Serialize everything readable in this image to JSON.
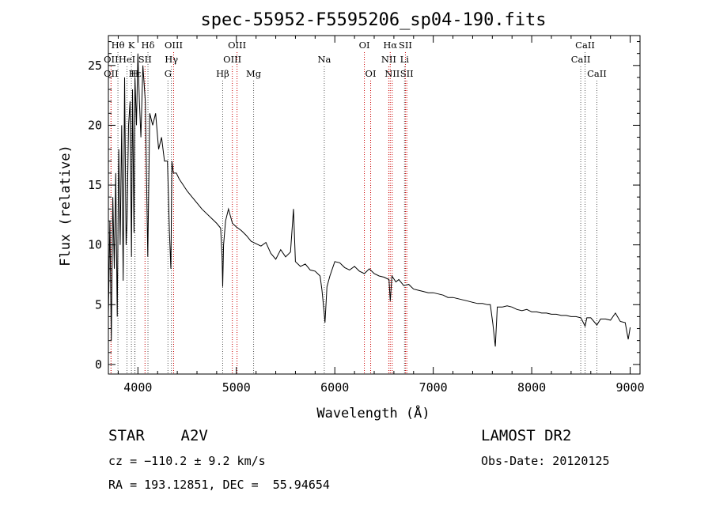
{
  "chart_data": {
    "type": "line",
    "title": "spec-55952-F5595206_sp04-190.fits",
    "xlabel": "Wavelength (Å)",
    "ylabel": "Flux (relative)",
    "xlim": [
      3700,
      9100
    ],
    "ylim": [
      -0.8,
      27.5
    ],
    "xticks": [
      4000,
      5000,
      6000,
      7000,
      8000,
      9000
    ],
    "yticks": [
      0,
      5,
      10,
      15,
      20,
      25
    ],
    "grid": false,
    "line_color": "#000000",
    "marker_colors": {
      "emission": "#cc0000",
      "absorption": "#555555"
    },
    "spectrum": {
      "x": [
        3700,
        3715,
        3730,
        3745,
        3760,
        3775,
        3790,
        3805,
        3820,
        3835,
        3850,
        3865,
        3880,
        3890,
        3905,
        3920,
        3935,
        3945,
        3960,
        3970,
        3985,
        4000,
        4015,
        4030,
        4050,
        4075,
        4100,
        4120,
        4150,
        4180,
        4210,
        4240,
        4270,
        4300,
        4320,
        4335,
        4345,
        4360,
        4390,
        4420,
        4460,
        4500,
        4550,
        4600,
        4650,
        4700,
        4750,
        4800,
        4840,
        4855,
        4861,
        4870,
        4890,
        4920,
        4960,
        5000,
        5050,
        5100,
        5150,
        5200,
        5250,
        5300,
        5350,
        5400,
        5450,
        5500,
        5550,
        5580,
        5600,
        5650,
        5700,
        5750,
        5800,
        5850,
        5870,
        5890,
        5900,
        5920,
        5950,
        6000,
        6050,
        6100,
        6150,
        6200,
        6250,
        6300,
        6350,
        6400,
        6450,
        6500,
        6550,
        6563,
        6580,
        6620,
        6650,
        6700,
        6750,
        6800,
        6850,
        6900,
        6950,
        7000,
        7050,
        7100,
        7150,
        7200,
        7250,
        7300,
        7350,
        7400,
        7450,
        7500,
        7550,
        7580,
        7605,
        7630,
        7650,
        7700,
        7750,
        7800,
        7850,
        7900,
        7950,
        8000,
        8050,
        8100,
        8150,
        8200,
        8250,
        8300,
        8350,
        8400,
        8450,
        8500,
        8542,
        8560,
        8600,
        8662,
        8700,
        8750,
        8800,
        8850,
        8900,
        8950,
        8980,
        9000
      ],
      "y": [
        4,
        12,
        2,
        14,
        8,
        16,
        4,
        18,
        10,
        20,
        7,
        24,
        10,
        12,
        20,
        22,
        9,
        23,
        11,
        24,
        20,
        26,
        22,
        19,
        25,
        22,
        9,
        21,
        20,
        21,
        18,
        19,
        17,
        17,
        11,
        8,
        17,
        16,
        16,
        15.5,
        15,
        14.5,
        14,
        13.5,
        13,
        12.6,
        12.2,
        11.8,
        11.4,
        9,
        6.5,
        10,
        12,
        13,
        11.8,
        11.5,
        11.2,
        10.8,
        10.3,
        10.1,
        9.9,
        10.2,
        9.3,
        8.8,
        9.6,
        9,
        9.4,
        13,
        8.6,
        8.2,
        8.4,
        7.9,
        7.8,
        7.4,
        6.2,
        4.5,
        3.5,
        6.5,
        7.4,
        8.6,
        8.5,
        8.1,
        7.9,
        8.2,
        7.8,
        7.6,
        8,
        7.6,
        7.4,
        7.3,
        7.1,
        5.3,
        7.4,
        6.9,
        7.1,
        6.6,
        6.7,
        6.3,
        6.2,
        6.1,
        6,
        6,
        5.9,
        5.8,
        5.6,
        5.6,
        5.5,
        5.4,
        5.3,
        5.2,
        5.1,
        5.1,
        5,
        5,
        3.4,
        1.5,
        4.8,
        4.8,
        4.9,
        4.8,
        4.6,
        4.5,
        4.6,
        4.4,
        4.4,
        4.3,
        4.3,
        4.2,
        4.2,
        4.1,
        4.1,
        4,
        4,
        3.9,
        3.2,
        3.9,
        3.9,
        3.3,
        3.8,
        3.8,
        3.7,
        4.3,
        3.6,
        3.5,
        2.1,
        3.1
      ]
    },
    "spectral_lines": [
      {
        "label": "Hθ",
        "wavelength": 3797,
        "row": 0,
        "kind": "absorption"
      },
      {
        "label": "K",
        "wavelength": 3934,
        "row": 0,
        "kind": "absorption"
      },
      {
        "label": "Hδ",
        "wavelength": 4102,
        "row": 0,
        "kind": "absorption"
      },
      {
        "label": "OIII",
        "wavelength": 4363,
        "row": 0,
        "kind": "emission"
      },
      {
        "label": "OIII",
        "wavelength": 5007,
        "row": 0,
        "kind": "emission"
      },
      {
        "label": "OI",
        "wavelength": 6300,
        "row": 0,
        "kind": "emission"
      },
      {
        "label": "Hα",
        "wavelength": 6563,
        "row": 0,
        "kind": "emission"
      },
      {
        "label": "SII",
        "wavelength": 6717,
        "row": 0,
        "kind": "emission"
      },
      {
        "label": "CaII",
        "wavelength": 8542,
        "row": 0,
        "kind": "absorption"
      },
      {
        "label": "OII",
        "wavelength": 3727,
        "row": 1,
        "kind": "emission"
      },
      {
        "label": "HeI",
        "wavelength": 3889,
        "row": 1,
        "kind": "absorption"
      },
      {
        "label": "SII",
        "wavelength": 4072,
        "row": 1,
        "kind": "emission"
      },
      {
        "label": "Hγ",
        "wavelength": 4340,
        "row": 1,
        "kind": "absorption"
      },
      {
        "label": "OIII",
        "wavelength": 4959,
        "row": 1,
        "kind": "emission"
      },
      {
        "label": "Na",
        "wavelength": 5893,
        "row": 1,
        "kind": "absorption"
      },
      {
        "label": "NII",
        "wavelength": 6548,
        "row": 1,
        "kind": "emission"
      },
      {
        "label": "Li",
        "wavelength": 6708,
        "row": 1,
        "kind": "absorption"
      },
      {
        "label": "CaII",
        "wavelength": 8498,
        "row": 1,
        "kind": "absorption"
      },
      {
        "label": "OII",
        "wavelength": 3727,
        "row": 2,
        "kind": "emission"
      },
      {
        "label": "Hε",
        "wavelength": 3970,
        "row": 2,
        "kind": "absorption"
      },
      {
        "label": "H",
        "wavelength": 3968,
        "row": 2,
        "kind": "absorption"
      },
      {
        "label": "G",
        "wavelength": 4305,
        "row": 2,
        "kind": "absorption"
      },
      {
        "label": "Hβ",
        "wavelength": 4861,
        "row": 2,
        "kind": "absorption"
      },
      {
        "label": "Mg",
        "wavelength": 5175,
        "row": 2,
        "kind": "absorption"
      },
      {
        "label": "OI",
        "wavelength": 6364,
        "row": 2,
        "kind": "emission"
      },
      {
        "label": "NII",
        "wavelength": 6583,
        "row": 2,
        "kind": "emission"
      },
      {
        "label": "SII",
        "wavelength": 6731,
        "row": 2,
        "kind": "emission"
      },
      {
        "label": "CaII",
        "wavelength": 8662,
        "row": 2,
        "kind": "absorption"
      }
    ]
  },
  "info": {
    "class_label": "STAR",
    "subclass": "A2V",
    "survey": "LAMOST DR2",
    "redshift": "cz = −110.2 ± 9.2 km/s",
    "obs_date": "Obs-Date: 20120125",
    "coords": "RA = 193.12851, DEC =  55.94654"
  }
}
